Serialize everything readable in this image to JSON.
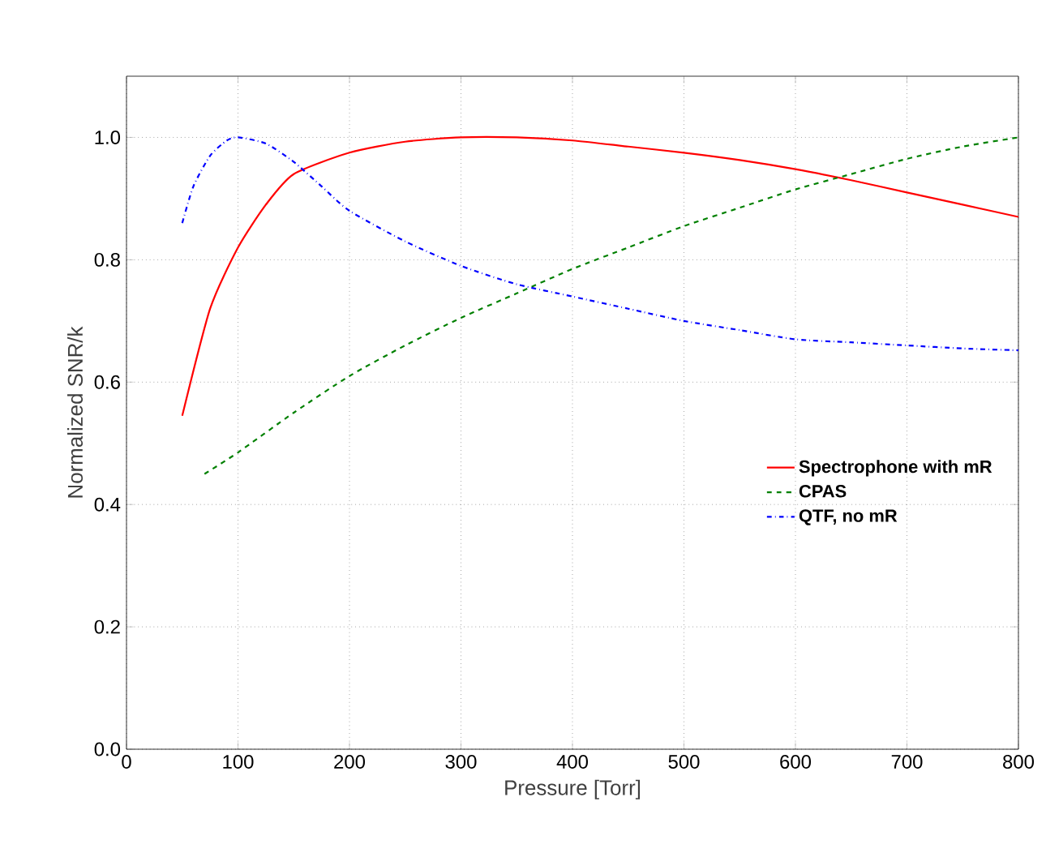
{
  "chart_data": {
    "type": "line",
    "xlabel": "Pressure [Torr]",
    "ylabel": "Normalized SNR/k",
    "xlim": [
      0,
      800
    ],
    "ylim": [
      0,
      1.1
    ],
    "xticks": [
      0,
      100,
      200,
      300,
      400,
      500,
      600,
      700,
      800
    ],
    "yticks": [
      {
        "value": 0,
        "label": "0.0"
      },
      {
        "value": 0.2,
        "label": "0.2"
      },
      {
        "value": 0.4,
        "label": "0.4"
      },
      {
        "value": 0.6,
        "label": "0.6"
      },
      {
        "value": 0.8,
        "label": "0.8"
      },
      {
        "value": 1.0,
        "label": "1.0"
      }
    ],
    "grid": true,
    "legend": "right",
    "series": [
      {
        "name": "Spectrophone with mR",
        "color": "#ff0000",
        "line_style": "solid",
        "x": [
          50,
          75,
          100,
          125,
          150,
          200,
          250,
          300,
          350,
          400,
          450,
          500,
          550,
          600,
          650,
          700,
          750,
          800
        ],
        "values": [
          0.545,
          0.72,
          0.82,
          0.89,
          0.94,
          0.975,
          0.993,
          1.0,
          1.0,
          0.995,
          0.985,
          0.975,
          0.963,
          0.948,
          0.93,
          0.91,
          0.89,
          0.87
        ]
      },
      {
        "name": "CPAS",
        "color": "#008000",
        "line_style": "dashed",
        "x": [
          70,
          100,
          150,
          200,
          250,
          300,
          350,
          400,
          450,
          500,
          550,
          600,
          650,
          700,
          750,
          800
        ],
        "values": [
          0.45,
          0.485,
          0.55,
          0.61,
          0.66,
          0.705,
          0.745,
          0.785,
          0.82,
          0.855,
          0.885,
          0.915,
          0.94,
          0.965,
          0.985,
          1.0
        ]
      },
      {
        "name": "QTF, no mR",
        "color": "#0000ff",
        "line_style": "dashdot",
        "x": [
          50,
          60,
          75,
          90,
          100,
          125,
          150,
          175,
          200,
          250,
          300,
          350,
          400,
          450,
          500,
          550,
          600,
          650,
          700,
          750,
          800
        ],
        "values": [
          0.86,
          0.92,
          0.97,
          0.995,
          1.0,
          0.99,
          0.96,
          0.92,
          0.88,
          0.83,
          0.79,
          0.76,
          0.74,
          0.72,
          0.7,
          0.685,
          0.67,
          0.665,
          0.66,
          0.655,
          0.652
        ]
      }
    ]
  }
}
